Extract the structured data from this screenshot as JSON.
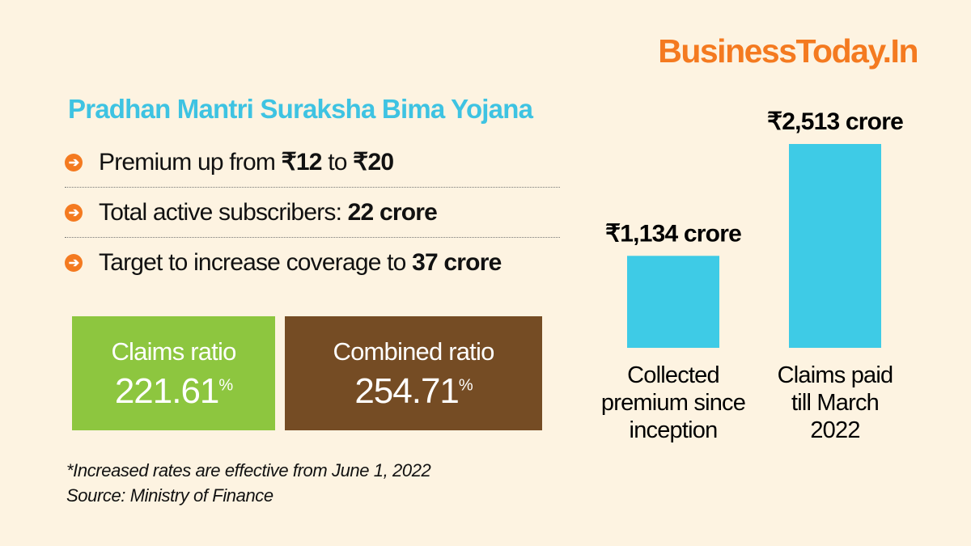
{
  "brand": "BusinessToday.In",
  "title": "Pradhan Mantri Suraksha Bima Yojana",
  "bullets": [
    {
      "pre": "Premium up from ",
      "b1": "₹12",
      "mid": " to ",
      "b2": "₹20"
    },
    {
      "pre": "Total active subscribers: ",
      "b1": "22 crore",
      "mid": "",
      "b2": ""
    },
    {
      "pre": "Target to increase coverage to ",
      "b1": "37 crore",
      "mid": "",
      "b2": ""
    }
  ],
  "boxes": [
    {
      "label": "Claims ratio",
      "value": "221.61",
      "unit": "%",
      "color": "#8dc63f"
    },
    {
      "label": "Combined ratio",
      "value": "254.71",
      "unit": "%",
      "color": "#754c24"
    }
  ],
  "notes": [
    "*Increased rates are effective from June 1, 2022",
    "Source: Ministry of Finance"
  ],
  "chart_data": {
    "type": "bar",
    "unit": "₹ crore",
    "categories": [
      [
        "Collected",
        "premium since",
        "inception"
      ],
      [
        "Claims paid",
        "till March",
        "2022"
      ]
    ],
    "values": [
      1134,
      2513
    ],
    "data_labels": [
      "₹1,134 crore",
      "₹2,513 crore"
    ],
    "color": "#3ecbe6",
    "ylim": [
      0,
      2513
    ]
  }
}
